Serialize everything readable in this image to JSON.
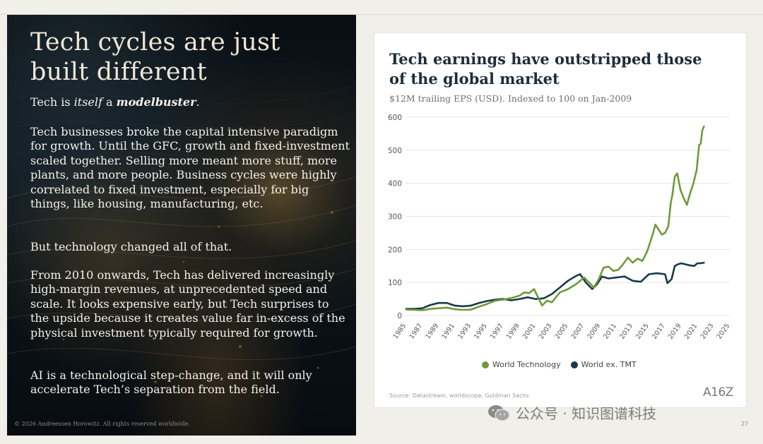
{
  "slide": {
    "headline": "Tech cycles are just built different",
    "lead_prefix": "Tech is ",
    "lead_italic": "itself",
    "lead_middle": " a ",
    "lead_bold": "modelbuster",
    "lead_suffix": ".",
    "paragraphs": [
      "Tech businesses broke the capital intensive paradigm for growth. Until the GFC, growth and fixed-investment scaled together. Selling more meant more stuff, more plants, and more people. Business cycles were highly correlated to fixed investment, especially for big things, like housing, manufacturing, etc.",
      "But technology changed all of that.",
      "From 2010 onwards, Tech has delivered increasingly high-margin revenues, at unprecedented speed and scale. It looks expensive early, but Tech surprises to the upside because it creates value far in-excess of the physical investment typically required for growth.",
      "AI is a technological step-change, and it will only accelerate Tech’s separation from the field."
    ],
    "copyright": "© 2026 Andreessen Horowitz. All rights reserved worldwide.",
    "page_number": "27",
    "logo_text": "A16Z",
    "watermark_text": "公众号 · 知识图谱科技",
    "colors": {
      "headline": "#efe6d6",
      "body_text": "#f4f1ea",
      "chart_title": "#1e2d3b"
    }
  },
  "chart_data": {
    "type": "line",
    "title": "Tech earnings have outstripped those of the global market",
    "subtitle": "$12M trailing EPS (USD). Indexed to 100 on Jan-2009",
    "source": "Source: Datastream, worldscope, Goldman Sachs",
    "xlabel": "",
    "ylabel": "",
    "xlim": [
      1985,
      2025
    ],
    "ylim": [
      0,
      600
    ],
    "yticks": [
      0,
      100,
      200,
      300,
      400,
      500,
      600
    ],
    "xticks": [
      "1985",
      "1987",
      "1989",
      "1991",
      "1993",
      "1995",
      "1997",
      "1999",
      "2001",
      "2003",
      "2005",
      "2007",
      "2009",
      "2011",
      "2013",
      "2015",
      "2017",
      "2019",
      "2021",
      "2023",
      "2025"
    ],
    "grid": true,
    "legend_position": "bottom",
    "series": [
      {
        "name": "World Technology",
        "color": "#6e9a3a",
        "points": [
          [
            1985,
            18
          ],
          [
            1986,
            17
          ],
          [
            1987,
            16
          ],
          [
            1988,
            20
          ],
          [
            1989,
            22
          ],
          [
            1990,
            24
          ],
          [
            1991,
            19
          ],
          [
            1992,
            17
          ],
          [
            1993,
            18
          ],
          [
            1994,
            27
          ],
          [
            1995,
            35
          ],
          [
            1996,
            45
          ],
          [
            1997,
            48
          ],
          [
            1998,
            53
          ],
          [
            1999,
            60
          ],
          [
            1999.6,
            70
          ],
          [
            2000.2,
            68
          ],
          [
            2000.8,
            80
          ],
          [
            2001.3,
            55
          ],
          [
            2001.8,
            30
          ],
          [
            2002.4,
            45
          ],
          [
            2003,
            40
          ],
          [
            2004,
            70
          ],
          [
            2005,
            80
          ],
          [
            2006,
            95
          ],
          [
            2007,
            115
          ],
          [
            2007.6,
            100
          ],
          [
            2008.2,
            85
          ],
          [
            2008.8,
            110
          ],
          [
            2009.4,
            145
          ],
          [
            2010,
            148
          ],
          [
            2010.6,
            135
          ],
          [
            2011.2,
            138
          ],
          [
            2011.8,
            155
          ],
          [
            2012.4,
            175
          ],
          [
            2013,
            160
          ],
          [
            2013.6,
            172
          ],
          [
            2014.2,
            165
          ],
          [
            2014.8,
            195
          ],
          [
            2015.4,
            240
          ],
          [
            2015.8,
            275
          ],
          [
            2016.2,
            260
          ],
          [
            2016.6,
            245
          ],
          [
            2017,
            250
          ],
          [
            2017.4,
            270
          ],
          [
            2017.7,
            340
          ],
          [
            2017.9,
            365
          ],
          [
            2018.2,
            420
          ],
          [
            2018.5,
            430
          ],
          [
            2018.9,
            380
          ],
          [
            2019.3,
            355
          ],
          [
            2019.7,
            335
          ],
          [
            2020.1,
            370
          ],
          [
            2020.5,
            400
          ],
          [
            2020.9,
            440
          ],
          [
            2021.2,
            515
          ],
          [
            2021.4,
            520
          ],
          [
            2021.6,
            560
          ],
          [
            2021.8,
            572
          ]
        ]
      },
      {
        "name": "World ex. TMT",
        "color": "#173a4c",
        "points": [
          [
            1985,
            20
          ],
          [
            1986,
            20
          ],
          [
            1987,
            22
          ],
          [
            1988,
            32
          ],
          [
            1989,
            38
          ],
          [
            1990,
            38
          ],
          [
            1991,
            30
          ],
          [
            1992,
            28
          ],
          [
            1993,
            30
          ],
          [
            1994,
            38
          ],
          [
            1995,
            44
          ],
          [
            1996,
            48
          ],
          [
            1997,
            50
          ],
          [
            1998,
            46
          ],
          [
            1999,
            50
          ],
          [
            2000,
            55
          ],
          [
            2001,
            50
          ],
          [
            2002,
            52
          ],
          [
            2003,
            65
          ],
          [
            2004,
            85
          ],
          [
            2005,
            105
          ],
          [
            2006,
            120
          ],
          [
            2006.5,
            125
          ],
          [
            2007.2,
            100
          ],
          [
            2008,
            80
          ],
          [
            2008.6,
            95
          ],
          [
            2009.2,
            118
          ],
          [
            2010,
            112
          ],
          [
            2011,
            115
          ],
          [
            2012,
            118
          ],
          [
            2013,
            105
          ],
          [
            2014,
            102
          ],
          [
            2015,
            125
          ],
          [
            2016,
            128
          ],
          [
            2017,
            125
          ],
          [
            2017.3,
            98
          ],
          [
            2017.8,
            110
          ],
          [
            2018.2,
            150
          ],
          [
            2018.6,
            155
          ],
          [
            2019,
            158
          ],
          [
            2019.5,
            155
          ],
          [
            2020,
            152
          ],
          [
            2020.6,
            150
          ],
          [
            2021,
            158
          ],
          [
            2021.4,
            158
          ],
          [
            2021.8,
            160
          ]
        ]
      }
    ]
  }
}
